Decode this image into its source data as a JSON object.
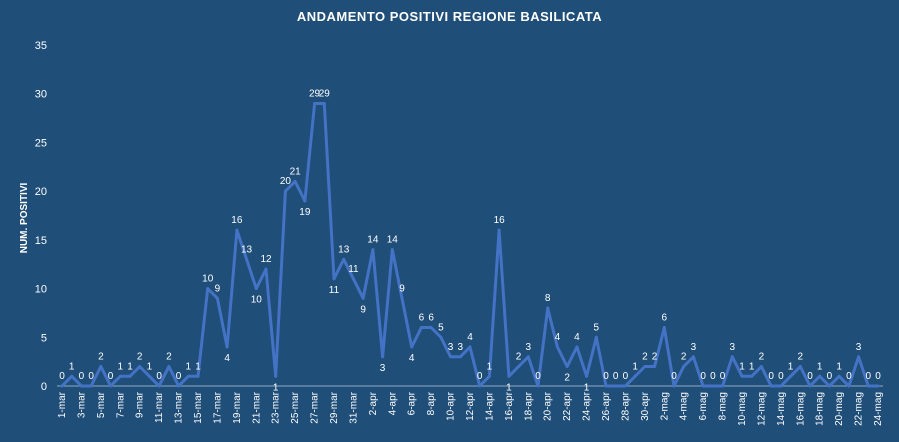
{
  "chart_data": {
    "type": "line",
    "title": "ANDAMENTO POSITIVI  REGIONE BASILICATA",
    "ylabel": "NUM. POSITIVI",
    "xlabel": "",
    "ylim": [
      0,
      35
    ],
    "yticks": [
      0,
      5,
      10,
      15,
      20,
      25,
      30,
      35
    ],
    "grid": false,
    "legend": "none",
    "colors": {
      "background": "#1f4e79",
      "line": "#4472c4",
      "text": "#ffffff"
    },
    "x": [
      "1-mar",
      "2-mar",
      "3-mar",
      "4-mar",
      "5-mar",
      "6-mar",
      "7-mar",
      "8-mar",
      "9-mar",
      "10-mar",
      "11-mar",
      "12-mar",
      "13-mar",
      "14-mar",
      "15-mar",
      "16-mar",
      "17-mar",
      "18-mar",
      "19-mar",
      "20-mar",
      "21-mar",
      "22-mar",
      "23-mar",
      "24-mar",
      "25-mar",
      "26-mar",
      "27-mar",
      "28-mar",
      "29-mar",
      "30-mar",
      "31-mar",
      "1-apr",
      "2-apr",
      "3-apr",
      "4-apr",
      "5-apr",
      "6-apr",
      "7-apr",
      "8-apr",
      "9-apr",
      "10-apr",
      "11-apr",
      "12-apr",
      "13-apr",
      "14-apr",
      "15-apr",
      "16-apr",
      "17-apr",
      "18-apr",
      "19-apr",
      "20-apr",
      "21-apr",
      "22-apr",
      "23-apr",
      "24-apr",
      "25-apr",
      "26-apr",
      "27-apr",
      "28-apr",
      "29-apr",
      "30-apr",
      "1-mag",
      "2-mag",
      "3-mag",
      "4-mag",
      "5-mag",
      "6-mag",
      "7-mag",
      "8-mag",
      "9-mag",
      "10-mag",
      "11-mag",
      "12-mag",
      "13-mag",
      "14-mag",
      "15-mag",
      "16-mag",
      "17-mag",
      "18-mag",
      "19-mag",
      "20-mag",
      "21-mag",
      "22-mag",
      "23-mag",
      "24-mag"
    ],
    "xtick_labels": [
      "1-mar",
      "3-mar",
      "5-mar",
      "7-mar",
      "9-mar",
      "11-mar",
      "13-mar",
      "15-mar",
      "17-mar",
      "19-mar",
      "21-mar",
      "23-mar",
      "25-mar",
      "27-mar",
      "29-mar",
      "31-mar",
      "2-apr",
      "4-apr",
      "6-apr",
      "8-apr",
      "10-apr",
      "12-apr",
      "14-apr",
      "16-apr",
      "18-apr",
      "20-apr",
      "22-apr",
      "24-apr",
      "26-apr",
      "28-apr",
      "30-apr",
      "2-mag",
      "4-mag",
      "6-mag",
      "8-mag",
      "10-mag",
      "12-mag",
      "14-mag",
      "16-mag",
      "18-mag",
      "20-mag",
      "22-mag",
      "24-mag"
    ],
    "series": [
      {
        "values": [
          0,
          1,
          0,
          0,
          2,
          0,
          1,
          1,
          2,
          1,
          0,
          2,
          0,
          1,
          1,
          10,
          9,
          4,
          16,
          13,
          10,
          12,
          1,
          20,
          21,
          19,
          29,
          29,
          11,
          13,
          11,
          9,
          14,
          3,
          14,
          9,
          4,
          6,
          6,
          5,
          3,
          3,
          4,
          0,
          1,
          16,
          1,
          2,
          3,
          0,
          8,
          4,
          2,
          4,
          1,
          5,
          0,
          0,
          0,
          1,
          2,
          2,
          6,
          0,
          2,
          3,
          0,
          0,
          0,
          3,
          1,
          1,
          2,
          0,
          0,
          1,
          2,
          0,
          1,
          0,
          1,
          0,
          3,
          0,
          0
        ]
      }
    ]
  }
}
